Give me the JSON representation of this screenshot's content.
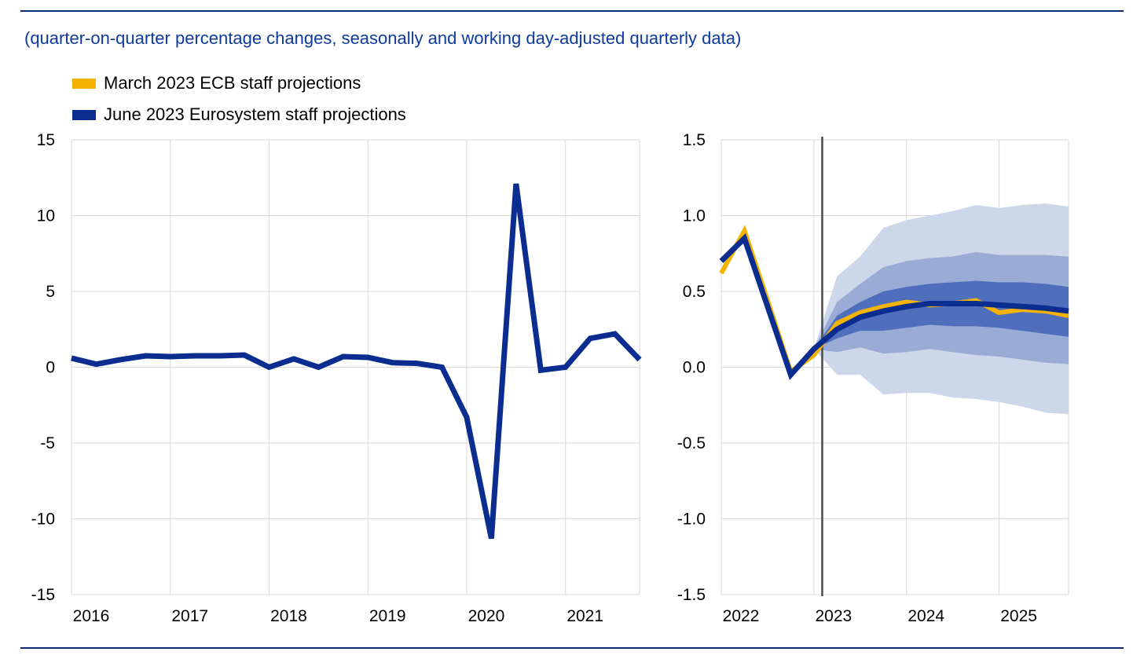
{
  "subtitle": "(quarter-on-quarter percentage changes, seasonally and working day-adjusted quarterly data)",
  "legend": [
    {
      "label": "March 2023 ECB staff projections",
      "color": "#f5b301"
    },
    {
      "label": "June 2023 Eurosystem staff projections",
      "color": "#0a2d8f"
    }
  ],
  "colors": {
    "march": "#f5b301",
    "june": "#0a2d8f",
    "band_outer": "#cdd7ea",
    "band_mid": "#9aabd6",
    "band_inner": "#4f6fbc",
    "grid": "#d9d9d9",
    "rule": "#0b2a6f",
    "vline": "#4a4a4a"
  },
  "chart_data": [
    {
      "type": "line",
      "title": "",
      "xlabel": "",
      "ylabel": "",
      "ylim": [
        -15,
        15
      ],
      "yticks": [
        -15,
        -10,
        -5,
        0,
        5,
        10,
        15
      ],
      "xlim": [
        2016.0,
        2021.75
      ],
      "xticks": [
        2016,
        2017,
        2018,
        2019,
        2020,
        2021
      ],
      "grid": true,
      "series": [
        {
          "name": "June 2023 Eurosystem staff projections",
          "x": [
            2016.0,
            2016.25,
            2016.5,
            2016.75,
            2017.0,
            2017.25,
            2017.5,
            2017.75,
            2018.0,
            2018.25,
            2018.5,
            2018.75,
            2019.0,
            2019.25,
            2019.5,
            2019.75,
            2020.0,
            2020.25,
            2020.5,
            2020.75,
            2021.0,
            2021.25,
            2021.5,
            2021.75
          ],
          "values": [
            0.6,
            0.2,
            0.5,
            0.75,
            0.7,
            0.75,
            0.75,
            0.8,
            0.0,
            0.55,
            0.0,
            0.7,
            0.65,
            0.3,
            0.25,
            0.0,
            -3.3,
            -11.3,
            12.1,
            -0.2,
            0.0,
            1.9,
            2.2,
            0.5
          ]
        }
      ]
    },
    {
      "type": "line",
      "title": "",
      "xlabel": "",
      "ylabel": "",
      "ylim": [
        -1.5,
        1.5
      ],
      "yticks": [
        -1.5,
        -1.0,
        -0.5,
        0.0,
        0.5,
        1.0,
        1.5
      ],
      "xlim": [
        2022.0,
        2025.75
      ],
      "xticks": [
        2022,
        2023,
        2024,
        2025
      ],
      "grid": true,
      "vline_x": 2023.09,
      "series": [
        {
          "name": "March 2023 ECB staff projections",
          "x": [
            2022.0,
            2022.25,
            2022.5,
            2022.75,
            2023.0,
            2023.25,
            2023.5,
            2023.75,
            2024.0,
            2024.25,
            2024.5,
            2024.75,
            2025.0,
            2025.25,
            2025.5,
            2025.75
          ],
          "values": [
            0.62,
            0.9,
            0.44,
            -0.03,
            0.08,
            0.29,
            0.36,
            0.4,
            0.43,
            0.41,
            0.42,
            0.44,
            0.36,
            0.38,
            0.37,
            0.34
          ]
        },
        {
          "name": "June 2023 Eurosystem staff projections",
          "x": [
            2022.0,
            2022.25,
            2022.5,
            2022.75,
            2023.0,
            2023.25,
            2023.5,
            2023.75,
            2024.0,
            2024.25,
            2024.5,
            2024.75,
            2025.0,
            2025.25,
            2025.5,
            2025.75
          ],
          "values": [
            0.7,
            0.85,
            0.4,
            -0.05,
            0.12,
            0.25,
            0.33,
            0.37,
            0.4,
            0.42,
            0.42,
            0.42,
            0.41,
            0.4,
            0.39,
            0.37
          ]
        }
      ],
      "uncertainty_bands": {
        "x": [
          2023.0,
          2023.25,
          2023.5,
          2023.75,
          2024.0,
          2024.25,
          2024.5,
          2024.75,
          2025.0,
          2025.25,
          2025.5,
          2025.75
        ],
        "outer": {
          "lower": [
            0.12,
            -0.05,
            -0.05,
            -0.18,
            -0.17,
            -0.17,
            -0.2,
            -0.21,
            -0.23,
            -0.26,
            -0.3,
            -0.31
          ],
          "upper": [
            0.12,
            0.6,
            0.73,
            0.92,
            0.97,
            1.0,
            1.03,
            1.07,
            1.05,
            1.07,
            1.08,
            1.06
          ]
        },
        "middle": {
          "lower": [
            0.12,
            0.1,
            0.13,
            0.09,
            0.1,
            0.12,
            0.1,
            0.08,
            0.07,
            0.05,
            0.03,
            0.02
          ],
          "upper": [
            0.12,
            0.43,
            0.55,
            0.66,
            0.7,
            0.72,
            0.73,
            0.76,
            0.74,
            0.74,
            0.74,
            0.73
          ]
        },
        "inner": {
          "lower": [
            0.12,
            0.19,
            0.24,
            0.24,
            0.26,
            0.28,
            0.27,
            0.27,
            0.26,
            0.24,
            0.22,
            0.2
          ],
          "upper": [
            0.12,
            0.34,
            0.43,
            0.5,
            0.53,
            0.55,
            0.56,
            0.57,
            0.56,
            0.56,
            0.55,
            0.53
          ]
        }
      }
    }
  ]
}
